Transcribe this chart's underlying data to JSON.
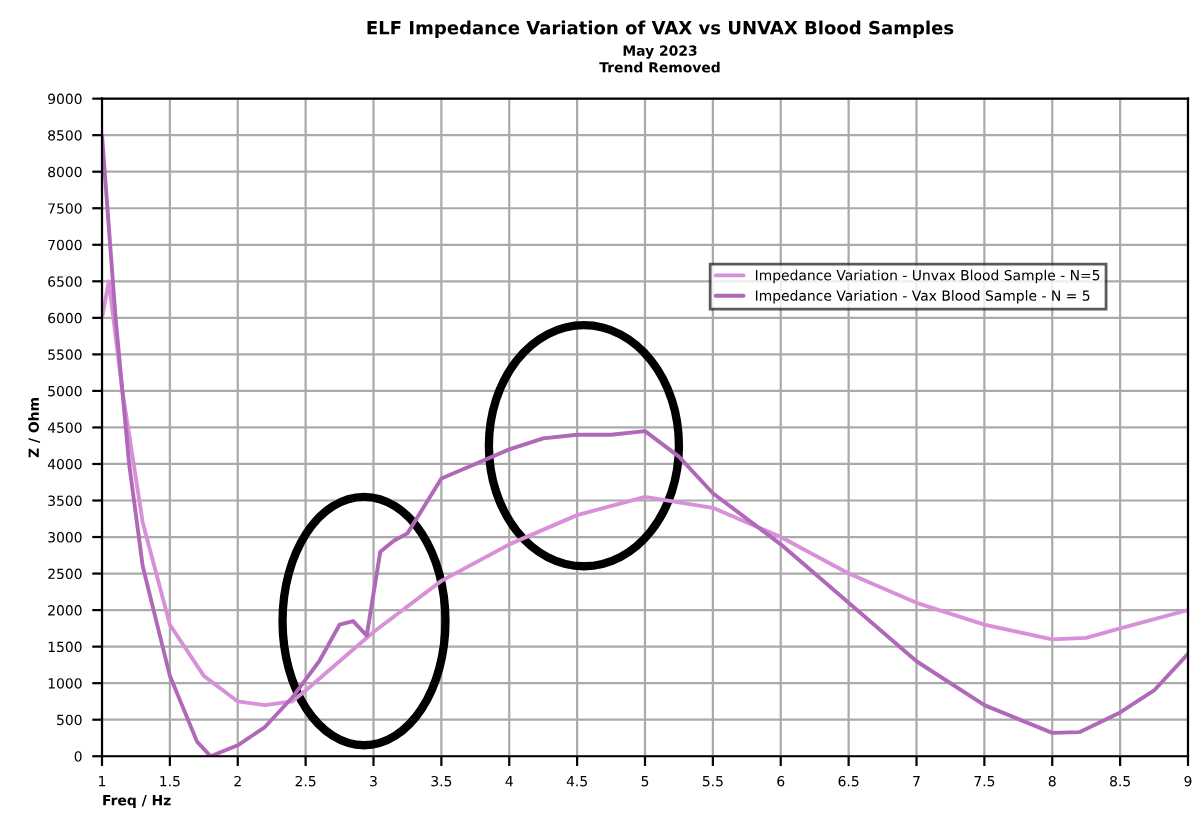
{
  "chart_data": {
    "type": "line",
    "title": "ELF Impedance Variation of VAX vs UNVAX Blood Samples",
    "subtitle": "May 2023\nTrend Removed",
    "xlabel": "Freq / Hz",
    "ylabel": "Z / Ohm",
    "xlim": [
      1,
      9
    ],
    "xticks": [
      1,
      1.5,
      2,
      2.5,
      3,
      3.5,
      4,
      4.5,
      5,
      5.5,
      6,
      6.5,
      7,
      7.5,
      8,
      8.5,
      9
    ],
    "ylim": [
      0,
      9000
    ],
    "yticks": [
      0,
      500,
      1000,
      1500,
      2000,
      2500,
      3000,
      3500,
      4000,
      4500,
      5000,
      5500,
      6000,
      6500,
      7000,
      7500,
      8000,
      8500,
      9000
    ],
    "grid": true,
    "legend": "top right",
    "series": [
      {
        "name": "Impedance Variation - Unvax Blood Sample - N=5",
        "color": "#d890d8",
        "x": [
          1.0,
          1.05,
          1.15,
          1.3,
          1.5,
          1.75,
          2.0,
          2.2,
          2.4,
          2.5,
          2.75,
          3.0,
          3.5,
          4.0,
          4.5,
          5.0,
          5.5,
          6.0,
          6.5,
          7.0,
          7.5,
          8.0,
          8.25,
          8.5,
          9.0
        ],
        "values": [
          6000,
          6500,
          5000,
          3200,
          1800,
          1100,
          750,
          700,
          750,
          900,
          1300,
          1700,
          2400,
          2900,
          3300,
          3550,
          3400,
          3000,
          2500,
          2100,
          1800,
          1600,
          1620,
          1750,
          2000
        ]
      },
      {
        "name": "Impedance Variation - Vax Blood Sample - N = 5",
        "color": "#b068b8",
        "x": [
          1.0,
          1.1,
          1.2,
          1.3,
          1.5,
          1.7,
          1.8,
          2.0,
          2.2,
          2.4,
          2.6,
          2.75,
          2.85,
          2.95,
          3.05,
          3.15,
          3.25,
          3.5,
          3.75,
          4.0,
          4.25,
          4.5,
          4.75,
          5.0,
          5.25,
          5.5,
          6.0,
          6.5,
          7.0,
          7.5,
          8.0,
          8.2,
          8.5,
          8.75,
          9.0
        ],
        "values": [
          8500,
          6000,
          4000,
          2600,
          1100,
          200,
          0,
          150,
          400,
          800,
          1300,
          1800,
          1850,
          1650,
          2800,
          2950,
          3050,
          3800,
          4000,
          4200,
          4350,
          4400,
          4400,
          4450,
          4100,
          3600,
          2900,
          2100,
          1300,
          700,
          320,
          330,
          600,
          900,
          1400
        ]
      }
    ]
  }
}
